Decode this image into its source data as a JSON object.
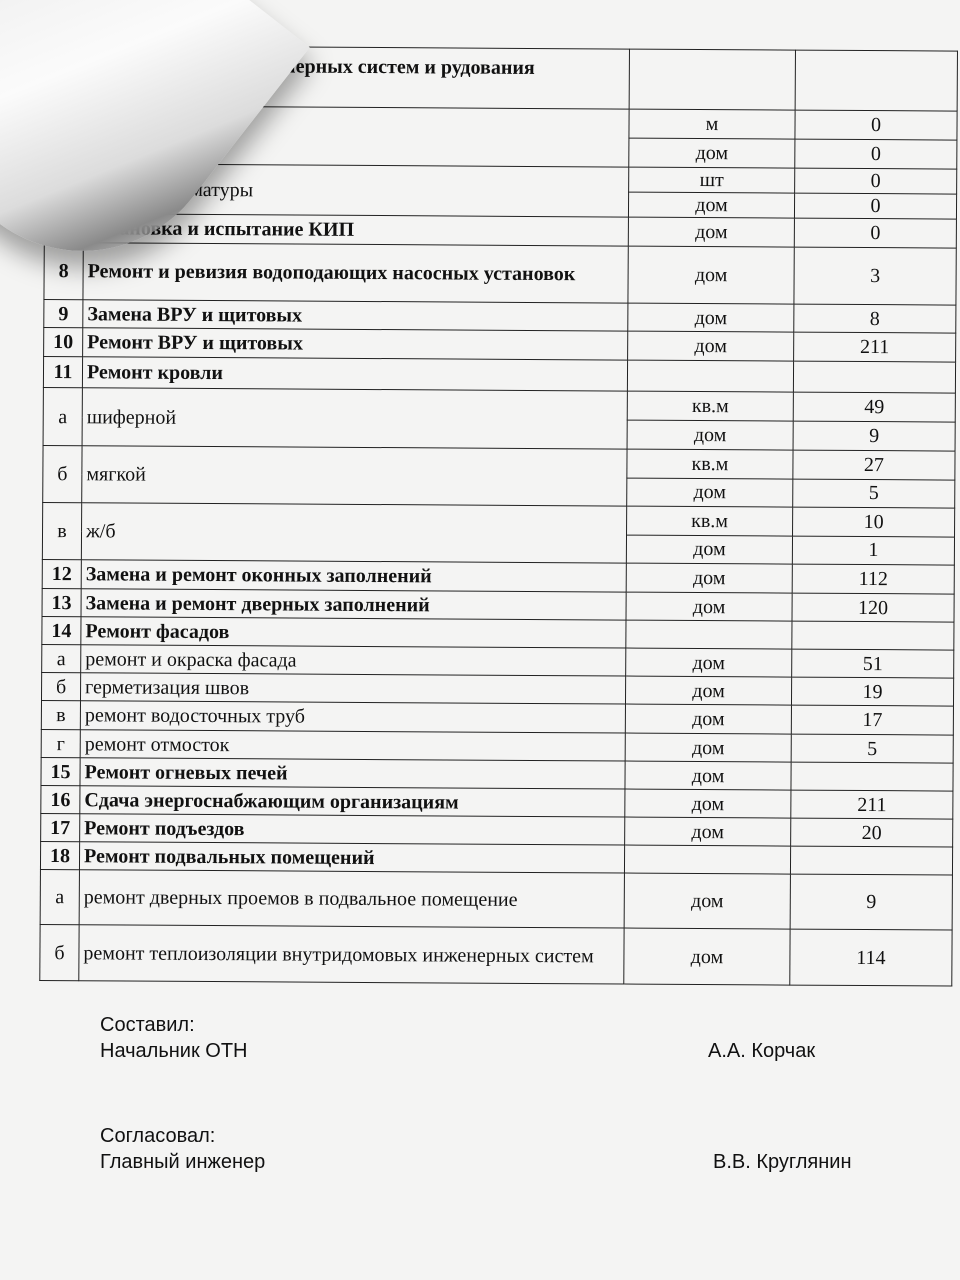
{
  "rows": [
    {
      "num": "",
      "name": "внутридомовых инженерных систем и рудования газоснабжения",
      "bold": true,
      "subs": [
        {
          "unit": "",
          "value": ""
        }
      ]
    },
    {
      "num": "",
      "name": "трубопроводов",
      "bold": false,
      "subs": [
        {
          "unit": "м",
          "value": "0"
        },
        {
          "unit": "дом",
          "value": "0"
        }
      ]
    },
    {
      "num": "б",
      "name": "запорной арматуры",
      "bold": false,
      "subs": [
        {
          "unit": "шт",
          "value": "0"
        },
        {
          "unit": "дом",
          "value": "0"
        }
      ]
    },
    {
      "num": "7",
      "name": "Установка и испытание КИП",
      "bold": true,
      "subs": [
        {
          "unit": "дом",
          "value": "0"
        }
      ]
    },
    {
      "num": "8",
      "name": "Ремонт и ревизия водоподающих насосных установок",
      "bold": true,
      "subs": [
        {
          "unit": "дом",
          "value": "3"
        }
      ]
    },
    {
      "num": "9",
      "name": "Замена ВРУ и щитовых",
      "bold": true,
      "subs": [
        {
          "unit": "дом",
          "value": "8"
        }
      ]
    },
    {
      "num": "10",
      "name": "Ремонт ВРУ и щитовых",
      "bold": true,
      "subs": [
        {
          "unit": "дом",
          "value": "211"
        }
      ]
    },
    {
      "num": "11",
      "name": "Ремонт кровли",
      "bold": true,
      "subs": [
        {
          "unit": "",
          "value": ""
        }
      ]
    },
    {
      "num": "а",
      "name": "шиферной",
      "bold": false,
      "subs": [
        {
          "unit": "кв.м",
          "value": "49"
        },
        {
          "unit": "дом",
          "value": "9"
        }
      ]
    },
    {
      "num": "б",
      "name": "мягкой",
      "bold": false,
      "subs": [
        {
          "unit": "кв.м",
          "value": "27"
        },
        {
          "unit": "дом",
          "value": "5"
        }
      ]
    },
    {
      "num": "в",
      "name": "ж/б",
      "bold": false,
      "subs": [
        {
          "unit": "кв.м",
          "value": "10"
        },
        {
          "unit": "дом",
          "value": "1"
        }
      ]
    },
    {
      "num": "12",
      "name": "Замена и ремонт оконных заполнений",
      "bold": true,
      "subs": [
        {
          "unit": "дом",
          "value": "112"
        }
      ]
    },
    {
      "num": "13",
      "name": "Замена и ремонт дверных заполнений",
      "bold": true,
      "subs": [
        {
          "unit": "дом",
          "value": "120"
        }
      ]
    },
    {
      "num": "14",
      "name": "Ремонт фасадов",
      "bold": true,
      "subs": [
        {
          "unit": "",
          "value": ""
        }
      ]
    },
    {
      "num": "а",
      "name": "ремонт и окраска фасада",
      "bold": false,
      "subs": [
        {
          "unit": "дом",
          "value": "51"
        }
      ]
    },
    {
      "num": "б",
      "name": "герметизация швов",
      "bold": false,
      "subs": [
        {
          "unit": "дом",
          "value": "19"
        }
      ]
    },
    {
      "num": "в",
      "name": "ремонт водосточных труб",
      "bold": false,
      "subs": [
        {
          "unit": "дом",
          "value": "17"
        }
      ]
    },
    {
      "num": "г",
      "name": "ремонт отмосток",
      "bold": false,
      "subs": [
        {
          "unit": "дом",
          "value": "5"
        }
      ]
    },
    {
      "num": "15",
      "name": "Ремонт огневых печей",
      "bold": true,
      "subs": [
        {
          "unit": "дом",
          "value": ""
        }
      ]
    },
    {
      "num": "16",
      "name": "Сдача энергоснабжающим организациям",
      "bold": true,
      "subs": [
        {
          "unit": "дом",
          "value": "211"
        }
      ]
    },
    {
      "num": "17",
      "name": "Ремонт подъездов",
      "bold": true,
      "subs": [
        {
          "unit": "дом",
          "value": "20"
        }
      ]
    },
    {
      "num": "18",
      "name": "Ремонт подвальных помещений",
      "bold": true,
      "subs": [
        {
          "unit": "",
          "value": ""
        }
      ]
    },
    {
      "num": "а",
      "name": "ремонт дверных проемов в подвальное помещение",
      "bold": false,
      "subs": [
        {
          "unit": "дом",
          "value": "9"
        }
      ]
    },
    {
      "num": "б",
      "name": "ремонт теплоизоляции внутридомовых инженерных систем",
      "bold": false,
      "subs": [
        {
          "unit": "дом",
          "value": "114"
        }
      ]
    }
  ],
  "signatures": {
    "compiled_label": "Составил:",
    "compiled_role": "Начальник ОТН",
    "compiled_name": "А.А. Корчак",
    "approved_label": "Согласовал:",
    "approved_role": "Главный инженер",
    "approved_name": "В.В. Круглянин"
  }
}
